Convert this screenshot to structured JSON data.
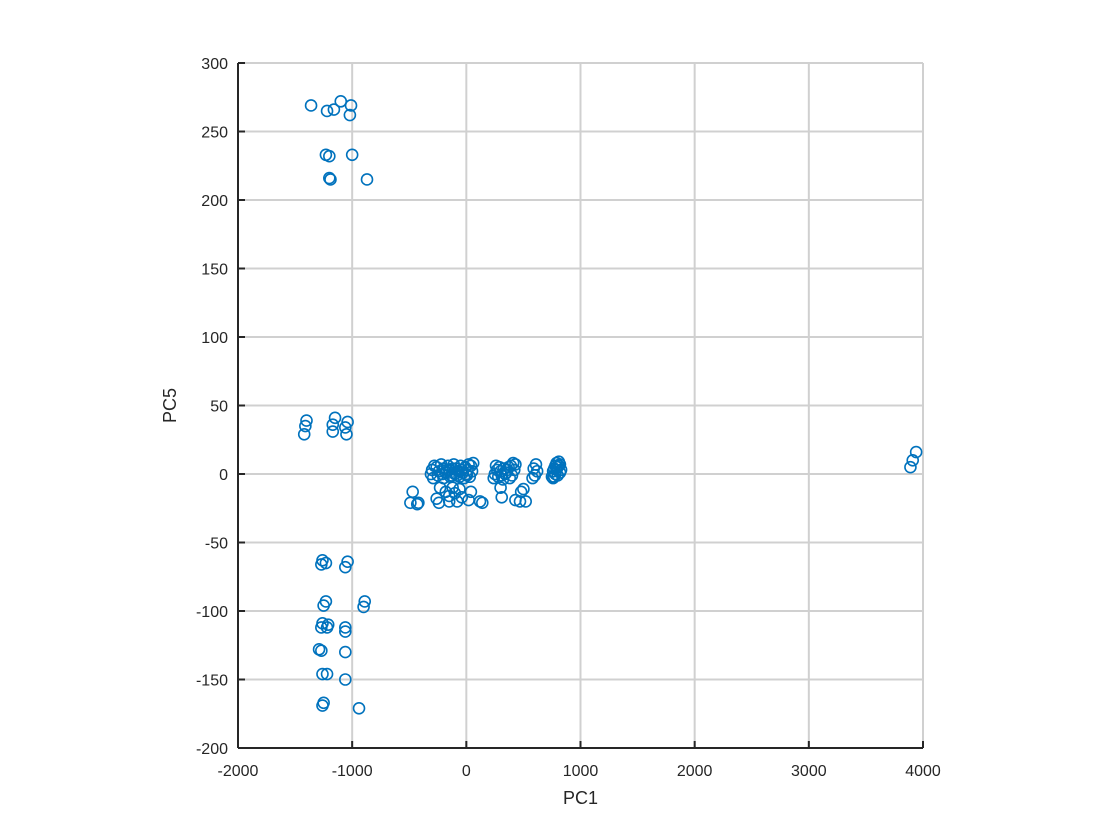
{
  "chart_data": {
    "type": "scatter",
    "title": "",
    "xlabel": "PC1",
    "ylabel": "PC5",
    "xlim": [
      -2000,
      4000
    ],
    "ylim": [
      -200,
      300
    ],
    "xticks": [
      -2000,
      -1000,
      0,
      1000,
      2000,
      3000,
      4000
    ],
    "yticks": [
      -200,
      -150,
      -100,
      -50,
      0,
      50,
      100,
      150,
      200,
      250,
      300
    ],
    "xtick_labels": [
      "-2000",
      "-1000",
      "0",
      "1000",
      "2000",
      "3000",
      "4000"
    ],
    "ytick_labels": [
      "-200",
      "-150",
      "-100",
      "-50",
      "0",
      "50",
      "100",
      "150",
      "200",
      "250",
      "300"
    ],
    "grid": true,
    "marker": "circle-open",
    "color": "#0072BD",
    "series": [
      {
        "points": [
          [
            -1360,
            269
          ],
          [
            -1220,
            265
          ],
          [
            -1160,
            266
          ],
          [
            -1100,
            272
          ],
          [
            -1010,
            269
          ],
          [
            -1020,
            262
          ],
          [
            -1230,
            233
          ],
          [
            -1200,
            232
          ],
          [
            -1000,
            233
          ],
          [
            -1200,
            216
          ],
          [
            -1190,
            215
          ],
          [
            -870,
            215
          ],
          [
            -1400,
            39
          ],
          [
            -1410,
            35
          ],
          [
            -1420,
            29
          ],
          [
            -1150,
            41
          ],
          [
            -1170,
            36
          ],
          [
            -1170,
            31
          ],
          [
            -1040,
            38
          ],
          [
            -1060,
            34
          ],
          [
            -1050,
            29
          ],
          [
            -1260,
            -63
          ],
          [
            -1270,
            -66
          ],
          [
            -1230,
            -65
          ],
          [
            -1040,
            -64
          ],
          [
            -1060,
            -68
          ],
          [
            -1230,
            -93
          ],
          [
            -1250,
            -96
          ],
          [
            -890,
            -93
          ],
          [
            -900,
            -97
          ],
          [
            -1260,
            -109
          ],
          [
            -1270,
            -112
          ],
          [
            -1210,
            -110
          ],
          [
            -1220,
            -112
          ],
          [
            -1060,
            -112
          ],
          [
            -1060,
            -115
          ],
          [
            -1290,
            -128
          ],
          [
            -1270,
            -129
          ],
          [
            -1060,
            -130
          ],
          [
            -1260,
            -146
          ],
          [
            -1220,
            -146
          ],
          [
            -1060,
            -150
          ],
          [
            -1250,
            -167
          ],
          [
            -1260,
            -169
          ],
          [
            -940,
            -171
          ],
          [
            -280,
            6
          ],
          [
            -300,
            3
          ],
          [
            -310,
            0
          ],
          [
            -290,
            -3
          ],
          [
            -260,
            5
          ],
          [
            -240,
            2
          ],
          [
            -220,
            7
          ],
          [
            -200,
            4
          ],
          [
            -180,
            1
          ],
          [
            -160,
            6
          ],
          [
            -150,
            3
          ],
          [
            -130,
            -1
          ],
          [
            -110,
            7
          ],
          [
            -90,
            4
          ],
          [
            -70,
            2
          ],
          [
            -50,
            6
          ],
          [
            -30,
            1
          ],
          [
            -10,
            5
          ],
          [
            10,
            3
          ],
          [
            20,
            7
          ],
          [
            40,
            6
          ],
          [
            50,
            2
          ],
          [
            60,
            8
          ],
          [
            30,
            -2
          ],
          [
            -20,
            -3
          ],
          [
            -60,
            -2
          ],
          [
            -100,
            0
          ],
          [
            -140,
            -2
          ],
          [
            -200,
            -3
          ],
          [
            -250,
            -1
          ],
          [
            0,
            0
          ],
          [
            -40,
            3
          ],
          [
            -120,
            4
          ],
          [
            -210,
            0
          ],
          [
            -170,
            3
          ],
          [
            -80,
            -1
          ],
          [
            5,
            -1
          ],
          [
            -230,
            -10
          ],
          [
            -180,
            -13
          ],
          [
            -150,
            -16
          ],
          [
            -100,
            -14
          ],
          [
            -40,
            -17
          ],
          [
            40,
            -13
          ],
          [
            -120,
            -10
          ],
          [
            -60,
            -11
          ],
          [
            -260,
            -18
          ],
          [
            -240,
            -21
          ],
          [
            -150,
            -20
          ],
          [
            -80,
            -20
          ],
          [
            20,
            -19
          ],
          [
            120,
            -20
          ],
          [
            140,
            -21
          ],
          [
            -470,
            -13
          ],
          [
            -490,
            -21
          ],
          [
            -430,
            -22
          ],
          [
            -420,
            -21
          ],
          [
            260,
            6
          ],
          [
            270,
            3
          ],
          [
            250,
            0
          ],
          [
            240,
            -3
          ],
          [
            290,
            5
          ],
          [
            300,
            2
          ],
          [
            310,
            -1
          ],
          [
            330,
            4
          ],
          [
            350,
            1
          ],
          [
            370,
            5
          ],
          [
            390,
            6
          ],
          [
            410,
            8
          ],
          [
            430,
            7
          ],
          [
            420,
            3
          ],
          [
            400,
            -1
          ],
          [
            380,
            -3
          ],
          [
            360,
            3
          ],
          [
            340,
            0
          ],
          [
            320,
            -4
          ],
          [
            300,
            -10
          ],
          [
            310,
            -17
          ],
          [
            280,
            -2
          ],
          [
            430,
            -19
          ],
          [
            470,
            -20
          ],
          [
            480,
            -13
          ],
          [
            500,
            -11
          ],
          [
            520,
            -20
          ],
          [
            590,
            4
          ],
          [
            610,
            7
          ],
          [
            600,
            -1
          ],
          [
            580,
            -3
          ],
          [
            620,
            2
          ],
          [
            750,
            -2
          ],
          [
            760,
            2
          ],
          [
            770,
            4
          ],
          [
            780,
            6
          ],
          [
            790,
            8
          ],
          [
            800,
            5
          ],
          [
            810,
            9
          ],
          [
            820,
            7
          ],
          [
            830,
            3
          ],
          [
            820,
            1
          ],
          [
            800,
            -1
          ],
          [
            780,
            0
          ],
          [
            760,
            -3
          ],
          [
            770,
            -2
          ],
          [
            790,
            3
          ],
          [
            810,
            6
          ],
          [
            3890,
            5
          ],
          [
            3910,
            10
          ],
          [
            3940,
            16
          ]
        ]
      }
    ]
  }
}
